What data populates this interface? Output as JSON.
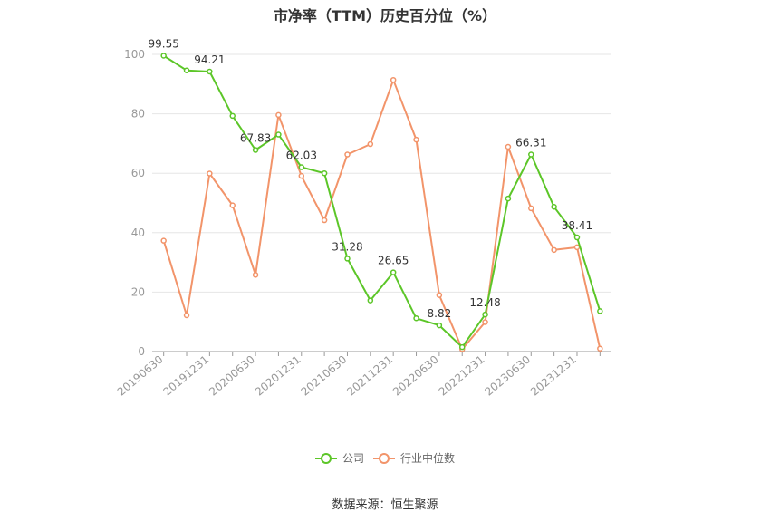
{
  "chart_data": {
    "type": "line",
    "title": "市净率（TTM）历史百分位（%）",
    "x": [
      "20190630",
      "20190930",
      "20191231",
      "20200331",
      "20200630",
      "20200930",
      "20201231",
      "20210331",
      "20210630",
      "20210930",
      "20211231",
      "20220331",
      "20220630",
      "20220930",
      "20221231",
      "20230331",
      "20230630",
      "20230930",
      "20231231",
      "20240331"
    ],
    "x_tick_labels": [
      "20190630",
      "20191231",
      "20200630",
      "20201231",
      "20210630",
      "20211231",
      "20220630",
      "20221231",
      "20230630",
      "20231231"
    ],
    "ylim": [
      0,
      100
    ],
    "y_ticks": [
      0,
      20,
      40,
      60,
      80,
      100
    ],
    "grid": true,
    "legend_position": "bottom",
    "series": [
      {
        "name": "公司",
        "color": "#5cc628",
        "values": [
          99.55,
          94.6,
          94.21,
          79.3,
          67.83,
          73.0,
          62.03,
          60.0,
          31.28,
          17.2,
          26.65,
          11.2,
          8.82,
          1.5,
          12.48,
          51.5,
          66.31,
          48.7,
          38.41,
          13.6
        ],
        "labels": [
          {
            "index": 0,
            "text": "99.55"
          },
          {
            "index": 2,
            "text": "94.21"
          },
          {
            "index": 4,
            "text": "67.83"
          },
          {
            "index": 6,
            "text": "62.03"
          },
          {
            "index": 8,
            "text": "31.28"
          },
          {
            "index": 10,
            "text": "26.65"
          },
          {
            "index": 12,
            "text": "8.82"
          },
          {
            "index": 14,
            "text": "12.48"
          },
          {
            "index": 16,
            "text": "66.31"
          },
          {
            "index": 18,
            "text": "38.41"
          }
        ]
      },
      {
        "name": "行业中位数",
        "color": "#f2946a",
        "values": [
          37.3,
          12.2,
          59.9,
          49.2,
          25.8,
          79.6,
          59.1,
          44.2,
          66.3,
          69.8,
          91.4,
          71.3,
          19.0,
          0.8,
          9.9,
          68.9,
          48.2,
          34.2,
          35.1,
          1.0
        ]
      }
    ]
  },
  "source": "数据来源：恒生聚源"
}
